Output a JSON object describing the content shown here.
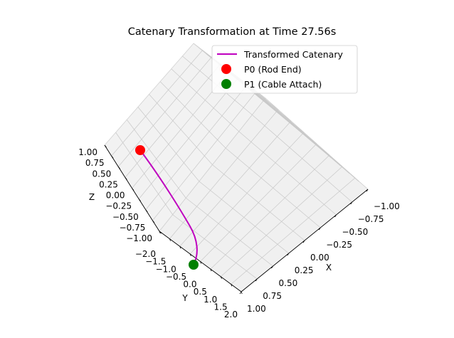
{
  "chart_data": {
    "type": "line3d",
    "title": "Catenary Transformation at Time 27.56s",
    "xlabel": "X",
    "ylabel": "Y",
    "zlabel": "Z",
    "xlim": [
      -1.0,
      1.0
    ],
    "ylim": [
      -2.0,
      2.0
    ],
    "zlim": [
      -1.0,
      1.0
    ],
    "xticks": [
      "−1.00",
      "−0.75",
      "−0.50",
      "−0.25",
      "0.00",
      "0.25",
      "0.50",
      "0.75",
      "1.00"
    ],
    "yticks": [
      "−2.0",
      "−1.5",
      "−1.0",
      "−0.5",
      "0.0",
      "0.5",
      "1.0",
      "1.5",
      "2.0"
    ],
    "zticks": [
      "1.00",
      "0.75",
      "0.50",
      "0.25",
      "0.00",
      "−0.25",
      "−0.50",
      "−0.75",
      "−1.00"
    ],
    "grid": true,
    "legend_position": "upper-right",
    "series": [
      {
        "name": "Transformed Catenary",
        "kind": "line",
        "color": "#bf00bf"
      },
      {
        "name": "P0 (Rod End)",
        "kind": "point",
        "color": "#ff0000"
      },
      {
        "name": "P1 (Cable Attach)",
        "kind": "point",
        "color": "#008000"
      }
    ]
  }
}
